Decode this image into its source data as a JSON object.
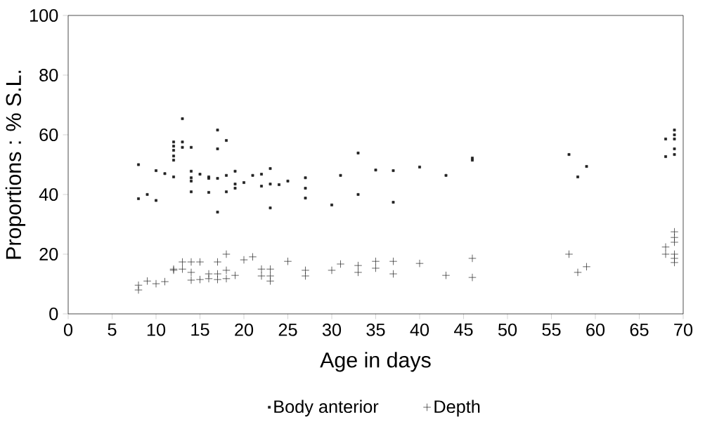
{
  "chart_data": {
    "type": "scatter",
    "xlabel": "Age in days",
    "ylabel": "Proportions : % S.L.",
    "xlim": [
      0,
      70
    ],
    "ylim": [
      0,
      100
    ],
    "xticks": [
      0,
      5,
      10,
      15,
      20,
      25,
      30,
      35,
      40,
      45,
      50,
      55,
      60,
      65,
      70
    ],
    "yticks": [
      0,
      20,
      40,
      60,
      80,
      100
    ],
    "grid": false,
    "legend": "bottom",
    "series": [
      {
        "name": "Body anterior",
        "color": "#222222",
        "marker": "square",
        "x": [
          8,
          8,
          9,
          10,
          10,
          11,
          12,
          12,
          12,
          12,
          12,
          12,
          13,
          13,
          13,
          14,
          14,
          14,
          14,
          14,
          15,
          16,
          16,
          16,
          17,
          17,
          17,
          17,
          18,
          18,
          18,
          19,
          19,
          19,
          20,
          21,
          22,
          22,
          23,
          23,
          23,
          24,
          25,
          27,
          27,
          27,
          30,
          31,
          33,
          33,
          35,
          37,
          37,
          40,
          43,
          46,
          46,
          57,
          58,
          59,
          68,
          68,
          69,
          69,
          69,
          69,
          69
        ],
        "values": [
          50,
          38.6,
          40,
          38,
          48,
          47,
          57.6,
          56.2,
          54.8,
          52.9,
          51.5,
          45.9,
          65.4,
          57.6,
          55.8,
          55.8,
          47.8,
          45.6,
          44.5,
          40.9,
          46.8,
          45.9,
          45.4,
          40.7,
          61.6,
          55.3,
          45.4,
          34.1,
          58.1,
          46.4,
          40.9,
          47.8,
          43.5,
          42.1,
          44,
          46.4,
          46.8,
          42.8,
          48.7,
          43.5,
          35.5,
          43.3,
          44.5,
          45.6,
          42.1,
          38.8,
          36.5,
          46.4,
          53.9,
          40,
          48.2,
          48,
          37.4,
          49.2,
          46.4,
          52.2,
          51.5,
          53.4,
          45.9,
          49.4,
          58.6,
          52.7,
          61.6,
          60,
          58.6,
          55.3,
          53.4
        ]
      },
      {
        "name": "Depth",
        "color": "#222222",
        "marker": "cross",
        "x": [
          8,
          8,
          9,
          10,
          11,
          12,
          12,
          13,
          13,
          14,
          14,
          14,
          15,
          15,
          16,
          16,
          17,
          17,
          17,
          18,
          18,
          18,
          19,
          20,
          21,
          22,
          22,
          23,
          23,
          23,
          25,
          27,
          27,
          30,
          31,
          33,
          33,
          35,
          35,
          37,
          37,
          40,
          43,
          46,
          46,
          57,
          58,
          59,
          68,
          68,
          69,
          69,
          69,
          69,
          69,
          69
        ],
        "values": [
          9.6,
          8,
          11,
          10.1,
          10.8,
          14.6,
          15,
          17.4,
          15,
          17.4,
          13.9,
          11.3,
          17.4,
          11.5,
          13.4,
          11.8,
          17.4,
          13.4,
          11.5,
          20,
          14.6,
          11.8,
          12.9,
          18.1,
          19.1,
          15,
          12.7,
          15,
          12.7,
          11,
          17.6,
          14.6,
          12.7,
          14.6,
          16.7,
          16.2,
          13.9,
          17.6,
          15.3,
          17.6,
          13.4,
          16.9,
          12.9,
          18.6,
          12.2,
          20,
          13.9,
          15.8,
          22.4,
          20,
          27.5,
          25.6,
          24,
          20,
          18.6,
          17.2
        ]
      }
    ]
  }
}
